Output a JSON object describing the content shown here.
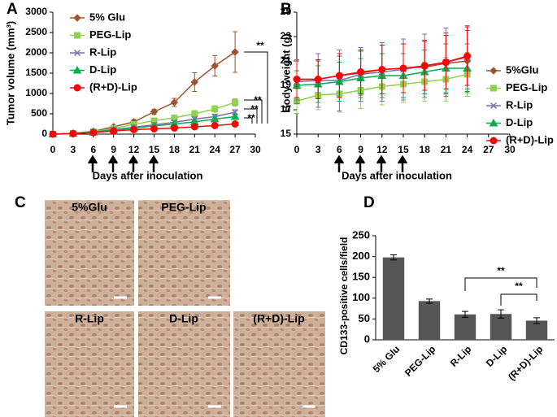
{
  "chart_data": [
    {
      "type": "line",
      "label": "A",
      "xlabel": "Days after inoculation",
      "ylabel": "Tumor volume (mm³)",
      "x": [
        0,
        3,
        6,
        9,
        12,
        15,
        18,
        21,
        24,
        27
      ],
      "xlim": [
        0,
        30
      ],
      "xticks": [
        0,
        3,
        6,
        9,
        12,
        15,
        18,
        21,
        24,
        27,
        30
      ],
      "ylim": [
        0,
        3000
      ],
      "yticks": [
        0,
        500,
        1000,
        1500,
        2000,
        2500,
        3000
      ],
      "series": [
        {
          "name": "5% Glu",
          "color": "#a0522d",
          "marker": "diamond",
          "values": [
            0,
            20,
            70,
            180,
            300,
            550,
            780,
            1280,
            1680,
            2020
          ],
          "errors": [
            0,
            5,
            15,
            40,
            60,
            60,
            100,
            230,
            250,
            500
          ]
        },
        {
          "name": "PEG-Lip",
          "color": "#92d050",
          "marker": "square",
          "values": [
            0,
            20,
            60,
            140,
            240,
            330,
            400,
            500,
            620,
            780
          ],
          "errors": [
            0,
            5,
            10,
            20,
            30,
            40,
            60,
            80,
            80,
            90
          ]
        },
        {
          "name": "R-Lip",
          "color": "#7f6cb0",
          "marker": "x",
          "values": [
            0,
            15,
            50,
            110,
            170,
            230,
            290,
            370,
            430,
            540
          ],
          "errors": [
            0,
            5,
            10,
            15,
            20,
            30,
            40,
            50,
            60,
            60
          ]
        },
        {
          "name": "D-Lip",
          "color": "#00b050",
          "marker": "triangle",
          "values": [
            0,
            15,
            45,
            100,
            150,
            200,
            250,
            300,
            370,
            430
          ],
          "errors": [
            0,
            5,
            10,
            15,
            20,
            25,
            30,
            40,
            50,
            60
          ]
        },
        {
          "name": "(R+D)-Lip",
          "color": "#ff0000",
          "marker": "circle",
          "values": [
            0,
            10,
            40,
            80,
            110,
            130,
            150,
            180,
            210,
            250
          ],
          "errors": [
            0,
            5,
            5,
            10,
            15,
            15,
            20,
            20,
            30,
            40
          ]
        }
      ],
      "annotations": [
        "**",
        "**",
        "**",
        "**"
      ]
    },
    {
      "type": "line",
      "label": "B",
      "xlabel": "Days after inoculation",
      "ylabel": "Body weight (g)",
      "x": [
        0,
        3,
        6,
        9,
        12,
        15,
        18,
        21,
        24
      ],
      "xlim": [
        0,
        30
      ],
      "xticks": [
        0,
        3,
        6,
        9,
        12,
        15,
        18,
        21,
        24,
        27,
        30
      ],
      "ylim": [
        15,
        25
      ],
      "yticks": [
        15,
        17,
        19,
        21,
        23,
        25
      ],
      "series": [
        {
          "name": "5%Glu",
          "color": "#a0522d",
          "marker": "diamond",
          "values": [
            19.5,
            19.5,
            19.8,
            20.0,
            20.3,
            20.4,
            20.5,
            20.8,
            21.0
          ],
          "errors": [
            1.5,
            1.5,
            1.6,
            1.8,
            2.0,
            2.0,
            2.2,
            2.5,
            2.5
          ]
        },
        {
          "name": "PEG-Lip",
          "color": "#92d050",
          "marker": "square",
          "values": [
            17.7,
            18.2,
            18.3,
            18.6,
            18.9,
            19.1,
            19.3,
            19.5,
            19.9
          ],
          "errors": [
            1.0,
            1.2,
            1.5,
            1.5,
            1.5,
            1.5,
            1.6,
            1.8,
            1.8
          ]
        },
        {
          "name": "R-Lip",
          "color": "#7f6cb0",
          "marker": "x",
          "values": [
            19.3,
            19.4,
            19.4,
            19.9,
            20.1,
            20.3,
            20.6,
            20.9,
            21.3
          ],
          "errors": [
            1.8,
            2.2,
            2.5,
            2.2,
            2.4,
            2.5,
            2.6,
            2.8,
            2.6
          ]
        },
        {
          "name": "D-Lip",
          "color": "#00b050",
          "marker": "triangle",
          "values": [
            19.0,
            19.1,
            19.3,
            19.6,
            19.8,
            19.8,
            20.1,
            20.4,
            20.4
          ],
          "errors": [
            1.2,
            1.5,
            1.6,
            1.6,
            1.8,
            1.8,
            1.8,
            2.0,
            2.0
          ]
        },
        {
          "name": "(R+D)-Lip",
          "color": "#ff0000",
          "marker": "circle",
          "values": [
            19.5,
            19.5,
            19.8,
            20.1,
            20.3,
            20.4,
            20.6,
            20.9,
            21.4
          ],
          "errors": [
            1.5,
            1.6,
            1.8,
            1.8,
            2.0,
            2.0,
            2.0,
            2.2,
            2.4
          ]
        }
      ]
    },
    {
      "type": "bar",
      "label": "D",
      "ylabel": "CD133-positive cells/field",
      "categories": [
        "5% Glu",
        "PEG-Lip",
        "R-Lip",
        "D-Lip",
        "(R+D)-Lip"
      ],
      "values": [
        198,
        93,
        61,
        62,
        46
      ],
      "errors": [
        6,
        5,
        7,
        10,
        7
      ],
      "color": "#555555",
      "ylim": [
        0,
        250
      ],
      "yticks": [
        0,
        50,
        100,
        150,
        200,
        250
      ],
      "annotations": [
        "**",
        "**"
      ]
    }
  ],
  "micrographs": {
    "label": "C",
    "titles": [
      "5%Glu",
      "PEG-Lip",
      "R-Lip",
      "D-Lip",
      "(R+D)-Lip"
    ]
  }
}
